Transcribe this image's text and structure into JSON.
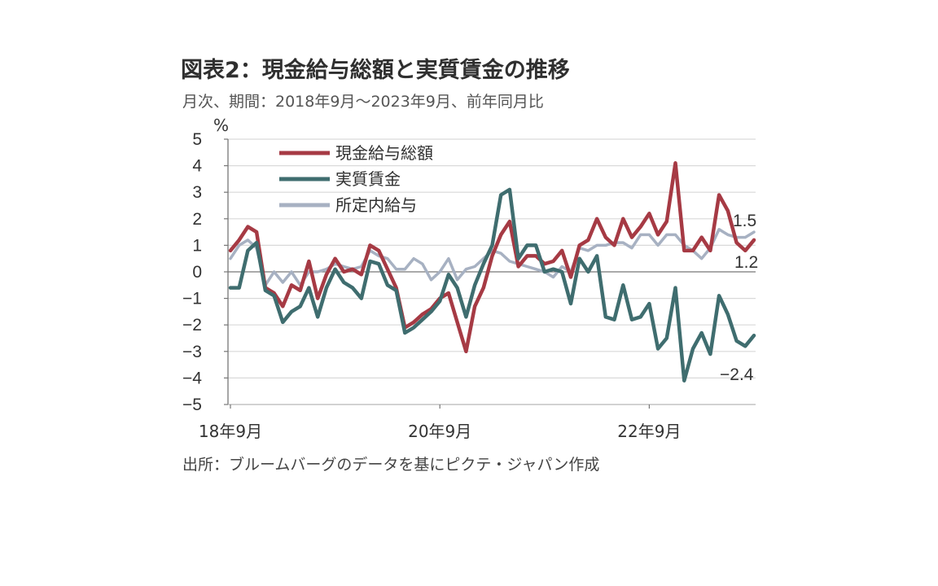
{
  "header": {
    "title": "図表2：現金給与総額と実質賃金の推移",
    "subtitle": "月次、期間：2018年9月～2023年9月、前年同月比"
  },
  "footer": {
    "source": "出所：ブルームバーグのデータを基にピクテ・ジャパン作成"
  },
  "chart_data": {
    "type": "line",
    "ylabel": "%",
    "ylim": [
      -5,
      5
    ],
    "yticks": [
      "5",
      "4",
      "3",
      "2",
      "1",
      "0",
      "−1",
      "−2",
      "−3",
      "−4",
      "−5"
    ],
    "xtick_labels": [
      "18年9月",
      "20年9月",
      "22年9月"
    ],
    "x": [
      "2018-09",
      "2018-10",
      "2018-11",
      "2018-12",
      "2019-01",
      "2019-02",
      "2019-03",
      "2019-04",
      "2019-05",
      "2019-06",
      "2019-07",
      "2019-08",
      "2019-09",
      "2019-10",
      "2019-11",
      "2019-12",
      "2020-01",
      "2020-02",
      "2020-03",
      "2020-04",
      "2020-05",
      "2020-06",
      "2020-07",
      "2020-08",
      "2020-09",
      "2020-10",
      "2020-11",
      "2020-12",
      "2021-01",
      "2021-02",
      "2021-03",
      "2021-04",
      "2021-05",
      "2021-06",
      "2021-07",
      "2021-08",
      "2021-09",
      "2021-10",
      "2021-11",
      "2021-12",
      "2022-01",
      "2022-02",
      "2022-03",
      "2022-04",
      "2022-05",
      "2022-06",
      "2022-07",
      "2022-08",
      "2022-09",
      "2022-10",
      "2022-11",
      "2022-12",
      "2023-01",
      "2023-02",
      "2023-03",
      "2023-04",
      "2023-05",
      "2023-06",
      "2023-07",
      "2023-08",
      "2023-09"
    ],
    "grid": true,
    "legend_position": "top-left",
    "series": [
      {
        "name": "現金給与総額",
        "color": "#a63a44",
        "values": [
          0.8,
          1.2,
          1.7,
          1.5,
          -0.6,
          -0.8,
          -1.3,
          -0.5,
          -0.7,
          0.4,
          -1.0,
          -0.1,
          0.5,
          0.0,
          0.1,
          -0.1,
          1.0,
          0.8,
          0.1,
          -0.6,
          -2.1,
          -1.9,
          -1.6,
          -1.4,
          -1.0,
          -0.8,
          -1.9,
          -3.0,
          -1.3,
          -0.6,
          0.6,
          1.4,
          1.9,
          0.2,
          0.6,
          0.6,
          0.3,
          0.4,
          0.8,
          -0.2,
          1.0,
          1.2,
          2.0,
          1.3,
          1.0,
          2.0,
          1.3,
          1.7,
          2.2,
          1.4,
          1.9,
          4.1,
          0.8,
          0.8,
          1.3,
          0.8,
          2.9,
          2.3,
          1.1,
          0.8,
          1.2
        ]
      },
      {
        "name": "実質賃金",
        "color": "#3f6d6f",
        "values": [
          -0.6,
          -0.6,
          0.8,
          1.1,
          -0.7,
          -0.9,
          -1.9,
          -1.5,
          -1.3,
          -0.6,
          -1.7,
          -0.6,
          0.1,
          -0.4,
          -0.6,
          -1.0,
          0.4,
          0.3,
          -0.5,
          -0.7,
          -2.3,
          -2.1,
          -1.8,
          -1.5,
          -1.1,
          -0.1,
          -0.6,
          -1.7,
          -0.5,
          0.3,
          1.0,
          2.9,
          3.1,
          0.5,
          1.0,
          1.0,
          0.0,
          0.1,
          0.0,
          -1.2,
          0.5,
          0.0,
          0.6,
          -1.7,
          -1.8,
          -0.5,
          -1.8,
          -1.7,
          -1.2,
          -2.9,
          -2.5,
          -0.6,
          -4.1,
          -2.9,
          -2.3,
          -3.1,
          -0.9,
          -1.6,
          -2.6,
          -2.8,
          -2.4
        ]
      },
      {
        "name": "所定内給与",
        "color": "#a7b1c2",
        "values": [
          0.5,
          1.0,
          1.2,
          0.9,
          -0.5,
          0.0,
          -0.4,
          0.0,
          -0.5,
          0.0,
          0.0,
          0.1,
          0.3,
          0.2,
          0.1,
          0.2,
          0.8,
          0.6,
          0.5,
          0.1,
          0.1,
          0.5,
          0.3,
          -0.3,
          0.0,
          0.5,
          -0.3,
          0.1,
          0.2,
          0.5,
          0.8,
          0.7,
          0.4,
          0.3,
          0.2,
          0.1,
          0.0,
          -0.2,
          0.2,
          0.0,
          0.9,
          0.8,
          1.0,
          1.0,
          1.1,
          1.1,
          0.9,
          1.4,
          1.4,
          1.0,
          1.4,
          1.4,
          1.0,
          0.8,
          0.5,
          0.9,
          1.6,
          1.4,
          1.3,
          1.3,
          1.5
        ]
      }
    ],
    "annotations": [
      {
        "text": "1.5",
        "series": 2
      },
      {
        "text": "1.2",
        "series": 0
      },
      {
        "text": "−2.4",
        "series": 1
      }
    ]
  }
}
